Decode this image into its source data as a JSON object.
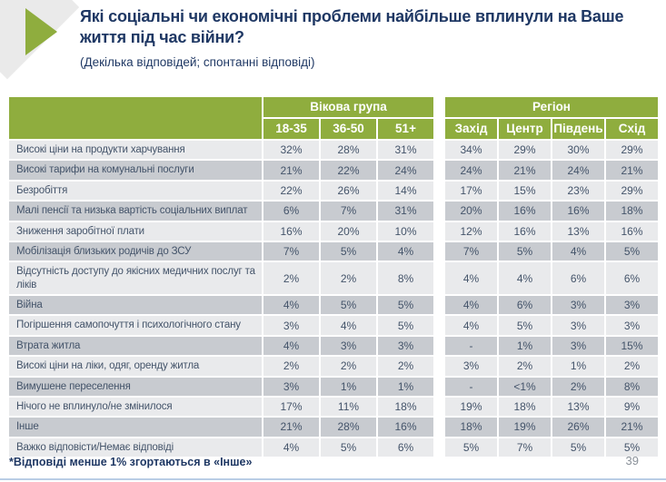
{
  "page": {
    "title": "Які соціальні чи економічні проблеми найбільше вплинули на Ваше життя під час війни?",
    "subtitle": "(Декілька відповідей; спонтанні відповіді)",
    "footnote": "*Відповіді менше 1% згортаються в «Інше»",
    "page_number": "39"
  },
  "colors": {
    "accent_green": "#8fad3e",
    "title_navy": "#1f3864",
    "row_light_gray": "#e9eaec",
    "row_dark_gray": "#c8cbd0",
    "cell_text": "#44546a",
    "bottom_line_blue": "#b9cde5"
  },
  "chart_data": {
    "type": "table",
    "title": "Які соціальні чи економічні проблеми найбільше вплинули на Ваше життя під час війни?",
    "subtitle": "(Декілька відповідей; спонтанні відповіді)",
    "column_groups": [
      {
        "label": "Вікова група",
        "columns": [
          "18-35",
          "36-50",
          "51+"
        ]
      },
      {
        "label": "Регіон",
        "columns": [
          "Захід",
          "Центр",
          "Південь",
          "Схід"
        ]
      }
    ],
    "rows": [
      {
        "label": "Високі ціни на продукти харчування",
        "age": [
          "32%",
          "28%",
          "31%"
        ],
        "region": [
          "34%",
          "29%",
          "30%",
          "29%"
        ]
      },
      {
        "label": "Високі тарифи на комунальні послуги",
        "age": [
          "21%",
          "22%",
          "24%"
        ],
        "region": [
          "24%",
          "21%",
          "24%",
          "21%"
        ]
      },
      {
        "label": "Безробіття",
        "age": [
          "22%",
          "26%",
          "14%"
        ],
        "region": [
          "17%",
          "15%",
          "23%",
          "29%"
        ]
      },
      {
        "label": "Малі пенсії та низька вартість соціальних виплат",
        "age": [
          "6%",
          "7%",
          "31%"
        ],
        "region": [
          "20%",
          "16%",
          "16%",
          "18%"
        ]
      },
      {
        "label": "Зниження заробітної плати",
        "age": [
          "16%",
          "20%",
          "10%"
        ],
        "region": [
          "12%",
          "16%",
          "13%",
          "16%"
        ]
      },
      {
        "label": "Мобілізація близьких родичів до ЗСУ",
        "age": [
          "7%",
          "5%",
          "4%"
        ],
        "region": [
          "7%",
          "5%",
          "4%",
          "5%"
        ]
      },
      {
        "label": "Відсутність доступу до якісних медичних послуг та ліків",
        "age": [
          "2%",
          "2%",
          "8%"
        ],
        "region": [
          "4%",
          "4%",
          "6%",
          "6%"
        ]
      },
      {
        "label": "Війна",
        "age": [
          "4%",
          "5%",
          "5%"
        ],
        "region": [
          "4%",
          "6%",
          "3%",
          "3%"
        ]
      },
      {
        "label": "Погіршення самопочуття і психологічного стану",
        "age": [
          "3%",
          "4%",
          "5%"
        ],
        "region": [
          "4%",
          "5%",
          "3%",
          "3%"
        ]
      },
      {
        "label": "Втрата житла",
        "age": [
          "4%",
          "3%",
          "3%"
        ],
        "region": [
          "-",
          "1%",
          "3%",
          "15%"
        ]
      },
      {
        "label": "Високі ціни на ліки, одяг, оренду житла",
        "age": [
          "2%",
          "2%",
          "2%"
        ],
        "region": [
          "3%",
          "2%",
          "1%",
          "2%"
        ]
      },
      {
        "label": "Вимушене переселення",
        "age": [
          "3%",
          "1%",
          "1%"
        ],
        "region": [
          "-",
          "<1%",
          "2%",
          "8%"
        ]
      },
      {
        "label": "Нічого не вплинуло/не змінилося",
        "age": [
          "17%",
          "11%",
          "18%"
        ],
        "region": [
          "19%",
          "18%",
          "13%",
          "9%"
        ]
      },
      {
        "label": "Інше",
        "age": [
          "21%",
          "28%",
          "16%"
        ],
        "region": [
          "18%",
          "19%",
          "26%",
          "21%"
        ]
      },
      {
        "label": "Важко відповісти/Немає відповіді",
        "age": [
          "4%",
          "5%",
          "6%"
        ],
        "region": [
          "5%",
          "7%",
          "5%",
          "5%"
        ]
      }
    ],
    "footnote": "*Відповіді менше 1% згортаються в «Інше»"
  }
}
